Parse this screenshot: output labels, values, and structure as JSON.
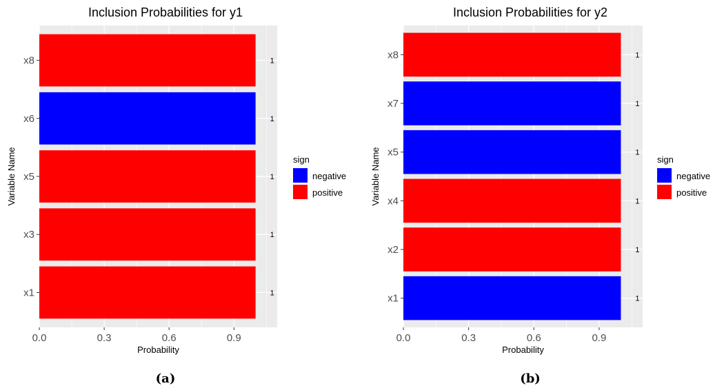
{
  "chart_data": [
    {
      "type": "bar",
      "orientation": "horizontal",
      "title": "Inclusion Probabilities for y1",
      "xlabel": "Probability",
      "ylabel": "Variable Name",
      "categories": [
        "x1",
        "x3",
        "x5",
        "x6",
        "x8"
      ],
      "values": [
        1,
        1,
        1,
        1,
        1
      ],
      "signs": [
        "positive",
        "positive",
        "positive",
        "negative",
        "positive"
      ],
      "value_labels": [
        "1",
        "1",
        "1",
        "1",
        "1"
      ],
      "xlim": [
        0,
        1.1
      ],
      "xticks": [
        0.0,
        0.3,
        0.6,
        0.9
      ],
      "xtick_labels": [
        "0.0",
        "0.3",
        "0.6",
        "0.9"
      ],
      "grid": true,
      "legend": {
        "title": "sign",
        "position": "right",
        "entries": [
          {
            "label": "negative",
            "color": "#0000ff"
          },
          {
            "label": "positive",
            "color": "#ff0000"
          }
        ]
      },
      "caption": "(a)"
    },
    {
      "type": "bar",
      "orientation": "horizontal",
      "title": "Inclusion Probabilities for y2",
      "xlabel": "Probability",
      "ylabel": "Variable Name",
      "categories": [
        "x1",
        "x2",
        "x4",
        "x5",
        "x7",
        "x8"
      ],
      "values": [
        1,
        1,
        1,
        1,
        1,
        1
      ],
      "signs": [
        "negative",
        "positive",
        "positive",
        "negative",
        "negative",
        "positive"
      ],
      "value_labels": [
        "1",
        "1",
        "1",
        "1",
        "1",
        "1"
      ],
      "xlim": [
        0,
        1.1
      ],
      "xticks": [
        0.0,
        0.3,
        0.6,
        0.9
      ],
      "xtick_labels": [
        "0.0",
        "0.3",
        "0.6",
        "0.9"
      ],
      "grid": true,
      "legend": {
        "title": "sign",
        "position": "right",
        "entries": [
          {
            "label": "negative",
            "color": "#0000ff"
          },
          {
            "label": "positive",
            "color": "#ff0000"
          }
        ]
      },
      "caption": "(b)"
    }
  ],
  "colors": {
    "panel_background": "#ebebeb",
    "grid_major": "#ffffff",
    "negative": "#0000ff",
    "positive": "#ff0000",
    "axis_text": "#4d4d4d",
    "tick": "#333333"
  }
}
